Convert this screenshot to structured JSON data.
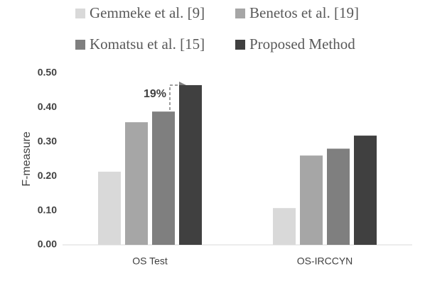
{
  "chart_data": {
    "type": "bar",
    "y_label": "F-measure",
    "categories": [
      "OS Test",
      "OS-IRCCYN"
    ],
    "series": [
      {
        "name": "Gemmeke et al. [9]",
        "color": "#d9d9d9",
        "values": [
          0.213,
          0.107
        ]
      },
      {
        "name": "Benetos et al. [19]",
        "color": "#a6a6a6",
        "values": [
          0.357,
          0.26
        ]
      },
      {
        "name": "Komatsu et al. [15]",
        "color": "#7f7f7f",
        "values": [
          0.388,
          0.28
        ]
      },
      {
        "name": "Proposed Method",
        "color": "#404040",
        "values": [
          0.465,
          0.318
        ]
      }
    ],
    "ylim": [
      0,
      0.5
    ],
    "yticks": [
      {
        "value": 0,
        "label": "0.00"
      },
      {
        "value": 0.1,
        "label": "0.10"
      },
      {
        "value": 0.2,
        "label": "0.20"
      },
      {
        "value": 0.3,
        "label": "0.30"
      },
      {
        "value": 0.4,
        "label": "0.40"
      },
      {
        "value": 0.5,
        "label": "0.50"
      }
    ],
    "grid": false,
    "annotation": "19%"
  }
}
